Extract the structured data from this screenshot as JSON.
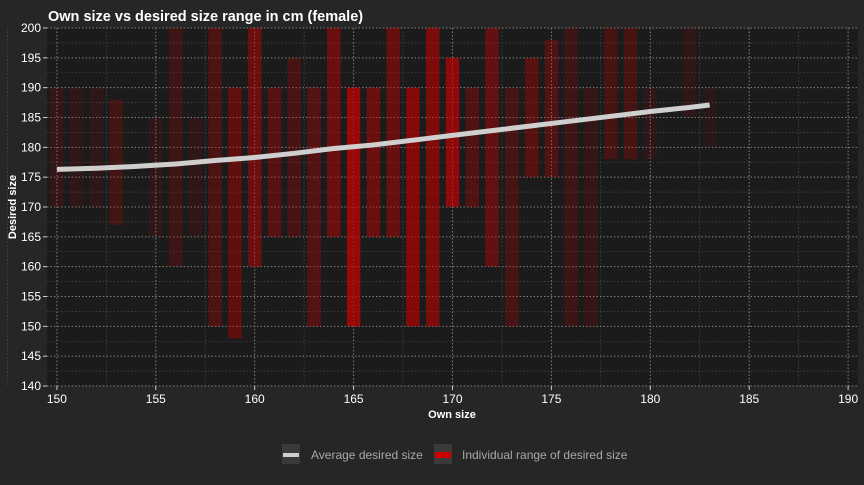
{
  "chart_data": {
    "type": "bar",
    "title": "Own size vs desired size range in cm (female)",
    "xlabel": "Own size",
    "ylabel": "Desired size",
    "xlim": [
      149.5,
      190.5
    ],
    "ylim": [
      140,
      200
    ],
    "xticks": [
      150,
      155,
      160,
      165,
      170,
      175,
      180,
      185,
      190
    ],
    "yticks": [
      140,
      145,
      150,
      155,
      160,
      165,
      170,
      175,
      180,
      185,
      190,
      195,
      200
    ],
    "grid": "dotted",
    "legend_position": "bottom",
    "legend": [
      {
        "label": "Average desired size",
        "color": "#cfcfcf"
      },
      {
        "label": "Individual range of desired size",
        "color": "#cc0000"
      }
    ],
    "series": [
      {
        "name": "Individual range of desired size",
        "kind": "range-bars",
        "color": "#cc0000",
        "ranges": [
          {
            "x": 150,
            "ymin": 170,
            "ymax": 190,
            "opacity": 0.15
          },
          {
            "x": 151,
            "ymin": 170,
            "ymax": 190,
            "opacity": 0.12
          },
          {
            "x": 152,
            "ymin": 170,
            "ymax": 190,
            "opacity": 0.12
          },
          {
            "x": 153,
            "ymin": 167,
            "ymax": 188,
            "opacity": 0.22
          },
          {
            "x": 155,
            "ymin": 165,
            "ymax": 185,
            "opacity": 0.12
          },
          {
            "x": 156,
            "ymin": 160,
            "ymax": 200,
            "opacity": 0.2
          },
          {
            "x": 157,
            "ymin": 165,
            "ymax": 185,
            "opacity": 0.12
          },
          {
            "x": 158,
            "ymin": 150,
            "ymax": 200,
            "opacity": 0.28
          },
          {
            "x": 159,
            "ymin": 148,
            "ymax": 190,
            "opacity": 0.38
          },
          {
            "x": 160,
            "ymin": 160,
            "ymax": 200,
            "opacity": 0.45
          },
          {
            "x": 161,
            "ymin": 165,
            "ymax": 190,
            "opacity": 0.35
          },
          {
            "x": 162,
            "ymin": 165,
            "ymax": 195,
            "opacity": 0.25
          },
          {
            "x": 163,
            "ymin": 150,
            "ymax": 190,
            "opacity": 0.32
          },
          {
            "x": 164,
            "ymin": 165,
            "ymax": 200,
            "opacity": 0.45
          },
          {
            "x": 165,
            "ymin": 150,
            "ymax": 190,
            "opacity": 0.7
          },
          {
            "x": 166,
            "ymin": 165,
            "ymax": 190,
            "opacity": 0.45
          },
          {
            "x": 167,
            "ymin": 165,
            "ymax": 200,
            "opacity": 0.42
          },
          {
            "x": 168,
            "ymin": 150,
            "ymax": 190,
            "opacity": 0.6
          },
          {
            "x": 169,
            "ymin": 150,
            "ymax": 200,
            "opacity": 0.55
          },
          {
            "x": 170,
            "ymin": 170,
            "ymax": 195,
            "opacity": 0.65
          },
          {
            "x": 171,
            "ymin": 170,
            "ymax": 190,
            "opacity": 0.3
          },
          {
            "x": 172,
            "ymin": 160,
            "ymax": 200,
            "opacity": 0.4
          },
          {
            "x": 173,
            "ymin": 150,
            "ymax": 190,
            "opacity": 0.25
          },
          {
            "x": 174,
            "ymin": 175,
            "ymax": 195,
            "opacity": 0.35
          },
          {
            "x": 175,
            "ymin": 175,
            "ymax": 198,
            "opacity": 0.3
          },
          {
            "x": 176,
            "ymin": 150,
            "ymax": 200,
            "opacity": 0.2
          },
          {
            "x": 177,
            "ymin": 150,
            "ymax": 190,
            "opacity": 0.15
          },
          {
            "x": 178,
            "ymin": 178,
            "ymax": 200,
            "opacity": 0.25
          },
          {
            "x": 179,
            "ymin": 178,
            "ymax": 200,
            "opacity": 0.25
          },
          {
            "x": 180,
            "ymin": 178,
            "ymax": 190,
            "opacity": 0.12
          },
          {
            "x": 182,
            "ymin": 185,
            "ymax": 200,
            "opacity": 0.12
          },
          {
            "x": 183,
            "ymin": 180,
            "ymax": 190,
            "opacity": 0.08
          }
        ]
      },
      {
        "name": "Average desired size",
        "kind": "line",
        "color": "#cfcfcf",
        "x": [
          150,
          152,
          154,
          156,
          158,
          160,
          162,
          164,
          166,
          168,
          170,
          172,
          174,
          176,
          178,
          180,
          182,
          183
        ],
        "y": [
          176.3,
          176.5,
          176.8,
          177.2,
          177.8,
          178.3,
          179.0,
          179.8,
          180.4,
          181.2,
          182.0,
          182.8,
          183.6,
          184.4,
          185.2,
          186.0,
          186.7,
          187.1
        ]
      }
    ]
  }
}
